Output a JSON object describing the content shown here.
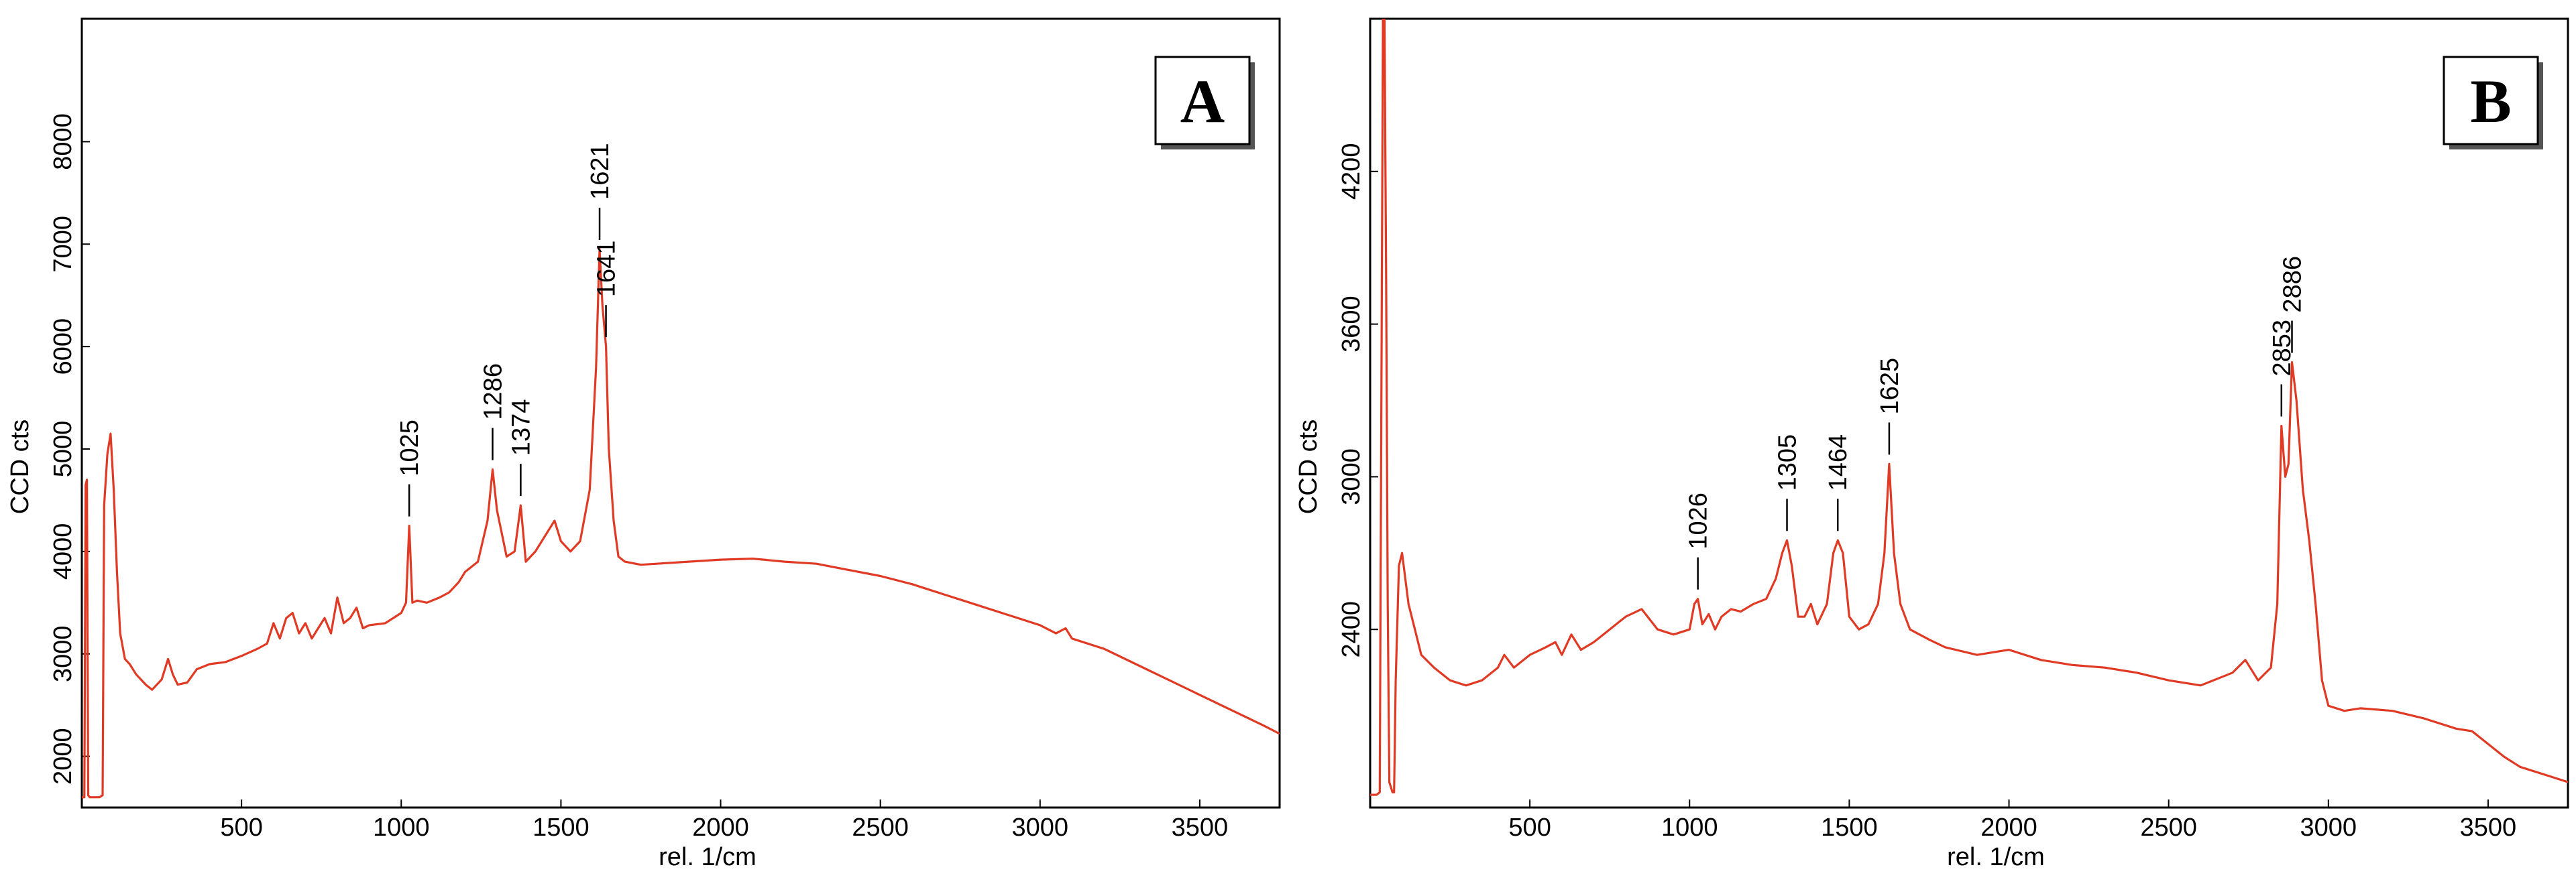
{
  "chart_data": [
    {
      "type": "line",
      "panel_label": "A",
      "xlabel": "rel. 1/cm",
      "ylabel": "CCD cts",
      "xlim": [
        0,
        3750
      ],
      "ylim": [
        1500,
        9200
      ],
      "xticks": [
        500,
        1000,
        1500,
        2000,
        2500,
        3000,
        3500
      ],
      "yticks": [
        2000,
        3000,
        4000,
        5000,
        6000,
        7000,
        8000
      ],
      "line_color": "#e03a24",
      "peaks": [
        {
          "label": "1025",
          "x": 1025,
          "y": 4250
        },
        {
          "label": "1286",
          "x": 1286,
          "y": 4800
        },
        {
          "label": "1374",
          "x": 1374,
          "y": 4450
        },
        {
          "label": "1621",
          "x": 1621,
          "y": 6950
        },
        {
          "label": "1641",
          "x": 1641,
          "y": 6000
        }
      ],
      "series": [
        {
          "x": [
            0,
            8,
            12,
            16,
            20,
            25,
            30,
            40,
            55,
            65,
            70,
            80,
            90,
            100,
            110,
            120,
            135,
            150,
            170,
            200,
            220,
            250,
            270,
            285,
            300,
            330,
            360,
            400,
            450,
            500,
            550,
            580,
            600,
            620,
            640,
            660,
            680,
            700,
            720,
            740,
            760,
            780,
            800,
            820,
            840,
            860,
            880,
            900,
            950,
            1000,
            1015,
            1025,
            1035,
            1050,
            1080,
            1120,
            1150,
            1180,
            1200,
            1240,
            1270,
            1286,
            1300,
            1330,
            1355,
            1374,
            1390,
            1420,
            1460,
            1480,
            1500,
            1530,
            1560,
            1590,
            1610,
            1621,
            1630,
            1641,
            1650,
            1665,
            1680,
            1700,
            1750,
            1800,
            1900,
            2000,
            2100,
            2200,
            2300,
            2400,
            2500,
            2600,
            2700,
            2800,
            2900,
            3000,
            3050,
            3080,
            3100,
            3200,
            3300,
            3400,
            3500,
            3600,
            3700,
            3750
          ],
          "y": [
            1600,
            1600,
            4650,
            4700,
            1620,
            1600,
            1600,
            1600,
            1600,
            1620,
            4450,
            4950,
            5150,
            4600,
            3800,
            3200,
            2950,
            2900,
            2800,
            2700,
            2650,
            2750,
            2950,
            2800,
            2700,
            2720,
            2850,
            2900,
            2920,
            2980,
            3050,
            3100,
            3300,
            3150,
            3350,
            3400,
            3200,
            3300,
            3150,
            3250,
            3350,
            3200,
            3550,
            3300,
            3350,
            3450,
            3250,
            3280,
            3300,
            3400,
            3500,
            4250,
            3500,
            3520,
            3500,
            3550,
            3600,
            3700,
            3800,
            3900,
            4300,
            4800,
            4400,
            3950,
            4000,
            4450,
            3900,
            4000,
            4200,
            4300,
            4100,
            4000,
            4100,
            4600,
            5800,
            6950,
            6400,
            6000,
            5000,
            4300,
            3950,
            3900,
            3870,
            3880,
            3900,
            3920,
            3930,
            3900,
            3880,
            3820,
            3760,
            3680,
            3580,
            3480,
            3380,
            3280,
            3200,
            3250,
            3150,
            3050,
            2900,
            2750,
            2600,
            2450,
            2300,
            2220
          ]
        }
      ]
    },
    {
      "type": "line",
      "panel_label": "B",
      "xlabel": "rel. 1/cm",
      "ylabel": "CCD cts",
      "xlim": [
        0,
        3750
      ],
      "ylim": [
        1700,
        4800
      ],
      "xticks": [
        500,
        1000,
        1500,
        2000,
        2500,
        3000,
        3500
      ],
      "yticks": [
        2400,
        3000,
        3600,
        4200
      ],
      "line_color": "#e03a24",
      "peaks": [
        {
          "label": "1026",
          "x": 1026,
          "y": 2520
        },
        {
          "label": "1305",
          "x": 1305,
          "y": 2750
        },
        {
          "label": "1464",
          "x": 1464,
          "y": 2750
        },
        {
          "label": "1625",
          "x": 1625,
          "y": 3050
        },
        {
          "label": "2853",
          "x": 2853,
          "y": 3200
        },
        {
          "label": "2886",
          "x": 2886,
          "y": 3450
        }
      ],
      "series": [
        {
          "x": [
            0,
            20,
            30,
            40,
            45,
            50,
            55,
            60,
            70,
            75,
            80,
            90,
            100,
            120,
            140,
            160,
            200,
            250,
            300,
            350,
            400,
            420,
            450,
            500,
            550,
            580,
            600,
            630,
            660,
            700,
            750,
            800,
            850,
            900,
            950,
            1000,
            1015,
            1026,
            1040,
            1060,
            1080,
            1100,
            1130,
            1160,
            1200,
            1240,
            1270,
            1290,
            1305,
            1320,
            1340,
            1360,
            1380,
            1400,
            1430,
            1450,
            1464,
            1480,
            1500,
            1530,
            1560,
            1590,
            1610,
            1625,
            1640,
            1660,
            1690,
            1720,
            1750,
            1800,
            1900,
            2000,
            2100,
            2200,
            2300,
            2400,
            2500,
            2600,
            2700,
            2740,
            2780,
            2820,
            2840,
            2853,
            2865,
            2875,
            2886,
            2900,
            2920,
            2940,
            2960,
            2980,
            3000,
            3050,
            3100,
            3200,
            3300,
            3400,
            3450,
            3500,
            3550,
            3600,
            3700,
            3750
          ],
          "y": [
            1750,
            1750,
            1760,
            4800,
            4800,
            3800,
            2500,
            1800,
            1760,
            1760,
            2200,
            2650,
            2700,
            2500,
            2400,
            2300,
            2250,
            2200,
            2180,
            2200,
            2250,
            2300,
            2250,
            2300,
            2330,
            2350,
            2300,
            2380,
            2320,
            2350,
            2400,
            2450,
            2480,
            2400,
            2380,
            2400,
            2500,
            2520,
            2420,
            2460,
            2400,
            2450,
            2480,
            2470,
            2500,
            2520,
            2600,
            2700,
            2750,
            2650,
            2450,
            2450,
            2500,
            2420,
            2500,
            2700,
            2750,
            2700,
            2450,
            2400,
            2420,
            2500,
            2700,
            3050,
            2700,
            2500,
            2400,
            2380,
            2360,
            2330,
            2300,
            2320,
            2280,
            2260,
            2250,
            2230,
            2200,
            2180,
            2230,
            2280,
            2200,
            2250,
            2500,
            3200,
            3000,
            3050,
            3450,
            3300,
            2950,
            2750,
            2500,
            2200,
            2100,
            2080,
            2090,
            2080,
            2050,
            2010,
            2000,
            1950,
            1900,
            1860,
            1820,
            1800
          ]
        }
      ]
    }
  ]
}
